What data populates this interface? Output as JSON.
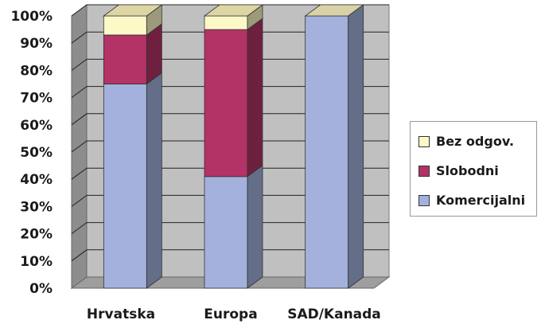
{
  "chart_data": {
    "type": "bar",
    "stacked": true,
    "three_d": true,
    "categories": [
      "Hrvatska",
      "Europa",
      "SAD/Kanada"
    ],
    "series": [
      {
        "name": "Komercijalni",
        "color": "#a3b1dc",
        "values": [
          75,
          41,
          100
        ]
      },
      {
        "name": "Slobodni",
        "color": "#b33366",
        "values": [
          18,
          54,
          0
        ]
      },
      {
        "name": "Bez odgov.",
        "color": "#fcf9c7",
        "values": [
          7,
          5,
          0
        ]
      }
    ],
    "yticks": [
      "0%",
      "10%",
      "20%",
      "30%",
      "40%",
      "50%",
      "60%",
      "70%",
      "80%",
      "90%",
      "100%"
    ],
    "ylim": [
      0,
      100
    ],
    "grid": true,
    "legend_position": "right",
    "legend_order": [
      "Bez odgov.",
      "Slobodni",
      "Komercijalni"
    ],
    "wall_color": "#c0c0c0",
    "floor_color": "#9e9e9e"
  }
}
